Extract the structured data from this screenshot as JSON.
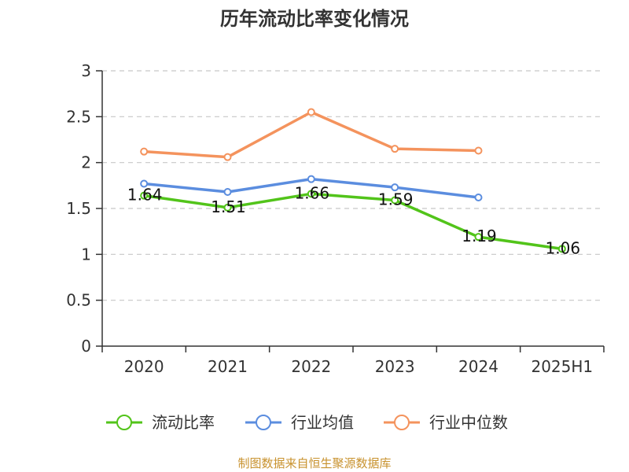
{
  "chart_data": {
    "type": "line",
    "title": "历年流动比率变化情况",
    "categories": [
      "2020",
      "2021",
      "2022",
      "2023",
      "2024",
      "2025H1"
    ],
    "ylim": [
      0,
      3
    ],
    "yticks": [
      "0",
      "0.5",
      "1",
      "1.5",
      "2",
      "2.5",
      "3"
    ],
    "grid": true,
    "legend_position": "bottom",
    "series": [
      {
        "name": "流动比率",
        "color": "#52c41a",
        "values": [
          1.64,
          1.51,
          1.66,
          1.59,
          1.19,
          1.06
        ],
        "labels": [
          "1.64",
          "1.51",
          "1.66",
          "1.59",
          "1.19",
          "1.06"
        ]
      },
      {
        "name": "行业均值",
        "color": "#5b8ddf",
        "values": [
          1.77,
          1.68,
          1.82,
          1.73,
          1.62,
          null
        ]
      },
      {
        "name": "行业中位数",
        "color": "#f4935d",
        "values": [
          2.12,
          2.06,
          2.55,
          2.15,
          2.13,
          null
        ]
      }
    ]
  },
  "source": "制图数据来自恒生聚源数据库"
}
